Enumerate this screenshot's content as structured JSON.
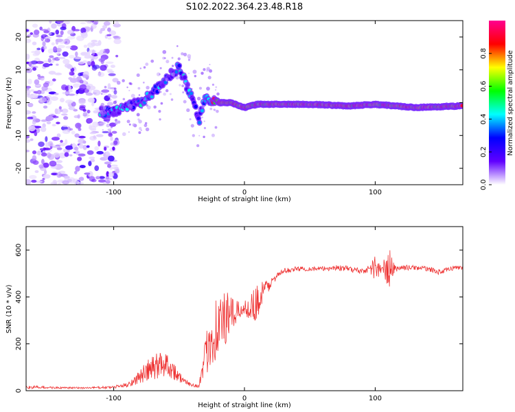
{
  "title": "S102.2022.364.23.48.R18",
  "chart_data": [
    {
      "type": "heatmap",
      "name": "spectrogram",
      "xlabel": "Height of straight line (km)",
      "ylabel": "Frequency (Hz)",
      "xlim": [
        -167,
        167
      ],
      "ylim": [
        -25,
        25
      ],
      "xticks": [
        -100,
        0,
        100
      ],
      "yticks": [
        -20,
        -10,
        0,
        10,
        20
      ],
      "colorbar": {
        "label": "Normalized spectral amplitude",
        "range": [
          0,
          1
        ],
        "ticks": [
          "0.0",
          "0.2",
          "0.4",
          "0.6",
          "0.8"
        ],
        "tick_values": [
          0,
          0.2,
          0.4,
          0.6,
          0.8
        ],
        "colormap": [
          "#ffffff",
          "#6000ff",
          "#0000ff",
          "#00ffff",
          "#00ff00",
          "#ffff00",
          "#ff0000",
          "#ff0090"
        ]
      },
      "ridge": {
        "description_points_x": [
          -110,
          -100,
          -90,
          -80,
          -70,
          -60,
          -50,
          -45,
          -40,
          -35,
          -30,
          -25,
          -20,
          -10,
          0,
          10,
          50,
          80,
          100,
          130,
          165
        ],
        "frequency_y": [
          -3,
          -2.5,
          -1.5,
          0,
          3,
          7,
          11,
          6,
          2,
          -6,
          2,
          0,
          0,
          0,
          -1.5,
          -0.5,
          -0.5,
          -1,
          -0.5,
          -1.5,
          -1
        ]
      }
    },
    {
      "type": "line",
      "name": "snr",
      "xlabel": "Height of straight line (km)",
      "ylabel": "SNR (10 * v/v)",
      "xlim": [
        -167,
        167
      ],
      "ylim": [
        0,
        700
      ],
      "xticks": [
        -100,
        0,
        100
      ],
      "yticks": [
        0,
        200,
        400,
        600
      ],
      "color": "#ee3333",
      "envelope_x": [
        -167,
        -160,
        -140,
        -120,
        -100,
        -90,
        -85,
        -80,
        -75,
        -70,
        -65,
        -60,
        -55,
        -50,
        -45,
        -40,
        -35,
        -30,
        -28,
        -25,
        -20,
        -15,
        -10,
        -5,
        0,
        5,
        10,
        15,
        20,
        25,
        30,
        40,
        50,
        60,
        70,
        80,
        90,
        95,
        100,
        105,
        110,
        115,
        120,
        130,
        140,
        150,
        160,
        167
      ],
      "envelope_y": [
        15,
        15,
        12,
        12,
        15,
        25,
        40,
        60,
        80,
        95,
        110,
        120,
        90,
        60,
        35,
        25,
        20,
        120,
        200,
        240,
        280,
        300,
        320,
        340,
        350,
        360,
        380,
        420,
        460,
        490,
        510,
        520,
        520,
        520,
        525,
        520,
        510,
        520,
        525,
        515,
        520,
        520,
        525,
        525,
        520,
        505,
        525,
        525
      ],
      "noise_x": [
        -167,
        -160,
        -140,
        -120,
        -100,
        -90,
        -85,
        -80,
        -75,
        -70,
        -65,
        -60,
        -55,
        -50,
        -45,
        -40,
        -35,
        -30,
        -28,
        -25,
        -20,
        -15,
        -10,
        -5,
        0,
        5,
        10,
        15,
        20,
        25,
        30,
        40,
        50,
        60,
        70,
        80,
        90,
        95,
        100,
        105,
        110,
        115,
        120,
        130,
        140,
        150,
        160,
        167
      ],
      "noise_amp": [
        8,
        6,
        4,
        4,
        6,
        10,
        18,
        30,
        45,
        60,
        60,
        60,
        40,
        25,
        12,
        8,
        8,
        90,
        120,
        140,
        150,
        130,
        80,
        40,
        30,
        60,
        80,
        60,
        20,
        12,
        12,
        10,
        10,
        10,
        12,
        12,
        14,
        14,
        60,
        14,
        110,
        14,
        12,
        10,
        10,
        12,
        10,
        10
      ]
    }
  ]
}
